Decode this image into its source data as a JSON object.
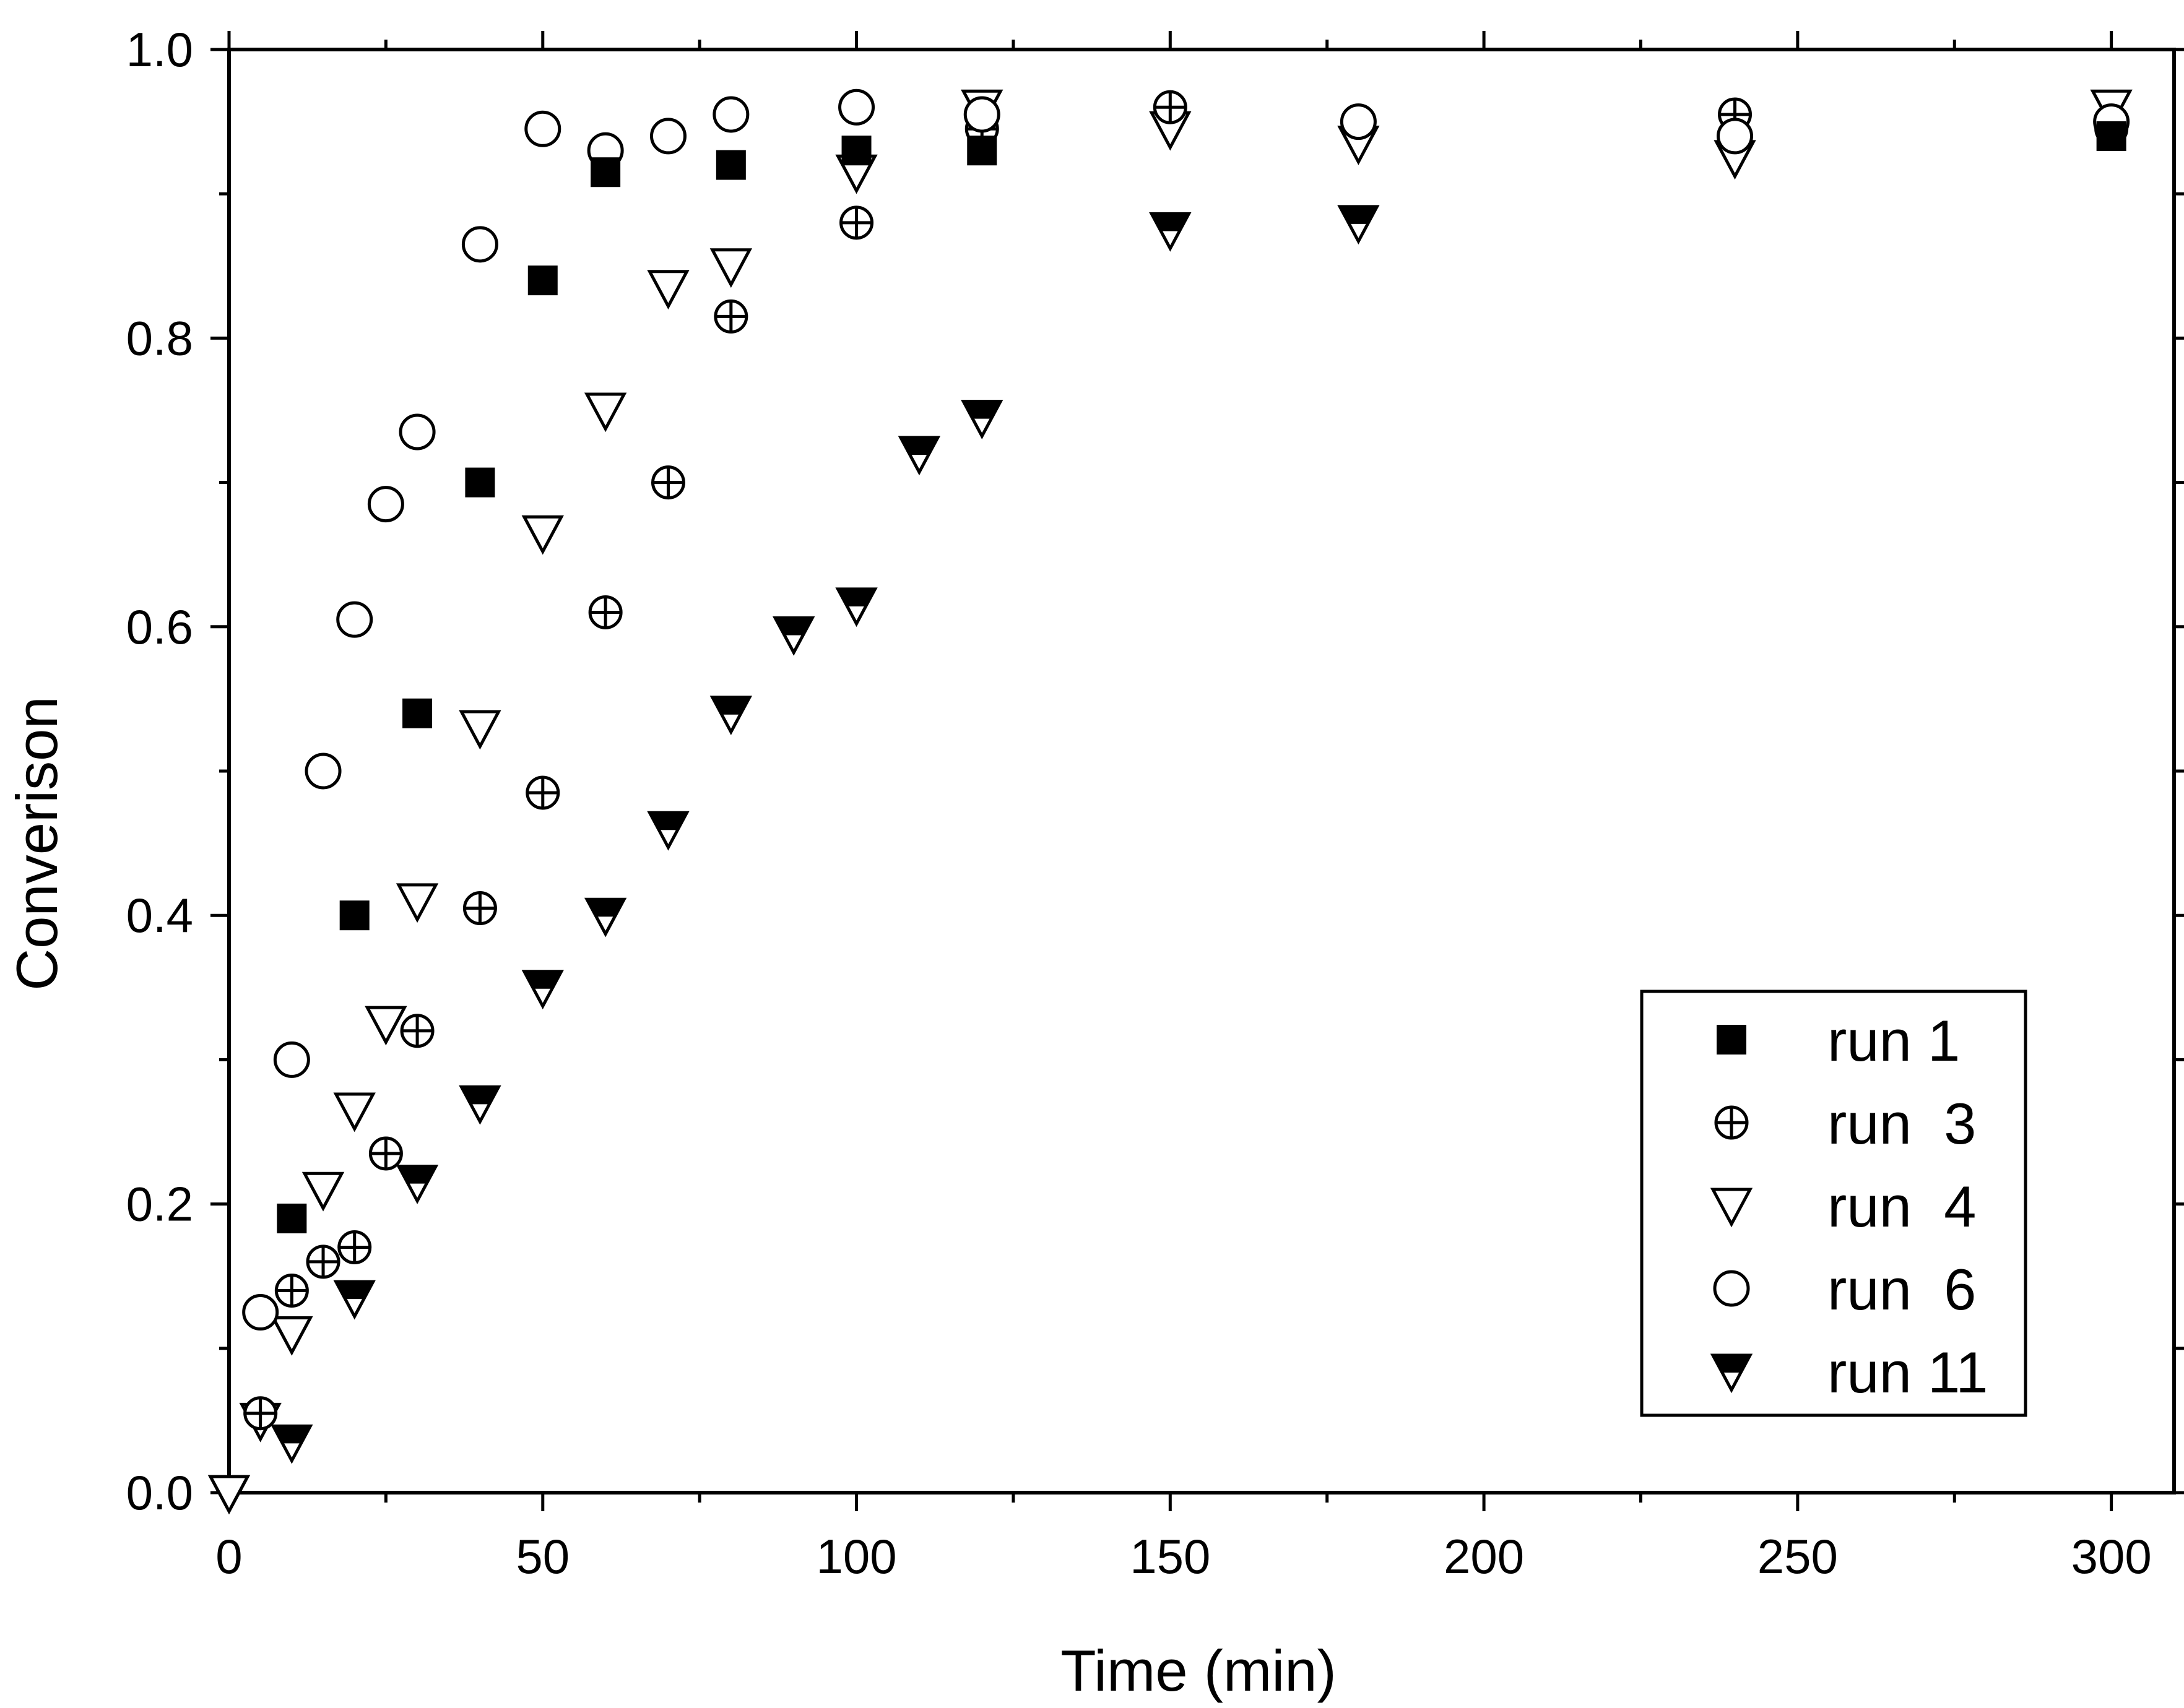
{
  "chart_data": {
    "type": "scatter",
    "xlabel": "Time (min)",
    "ylabel": "Converison",
    "xlim": [
      0,
      310
    ],
    "ylim": [
      0,
      1.0
    ],
    "xticks": [
      0,
      50,
      100,
      150,
      200,
      250,
      300
    ],
    "xtick_labels": [
      "0",
      "50",
      "100",
      "150",
      "200",
      "250",
      "300"
    ],
    "yticks": [
      0.0,
      0.2,
      0.4,
      0.6,
      0.8,
      1.0
    ],
    "ytick_labels": [
      "0.0",
      "0.2",
      "0.4",
      "0.6",
      "0.8",
      "1.0"
    ],
    "grid": false,
    "legend_position": "bottom-right",
    "series": [
      {
        "name": "run 1",
        "marker": "filled-square",
        "x": [
          10,
          20,
          30,
          40,
          50,
          60,
          80,
          100,
          120,
          300
        ],
        "y": [
          0.19,
          0.4,
          0.54,
          0.7,
          0.84,
          0.915,
          0.92,
          0.93,
          0.93,
          0.94
        ]
      },
      {
        "name": "run  3",
        "marker": "circle-plus",
        "x": [
          5,
          10,
          15,
          20,
          25,
          30,
          40,
          50,
          60,
          70,
          80,
          100,
          120,
          150,
          240,
          300
        ],
        "y": [
          0.055,
          0.14,
          0.16,
          0.17,
          0.235,
          0.32,
          0.405,
          0.485,
          0.61,
          0.7,
          0.815,
          0.88,
          0.945,
          0.96,
          0.955,
          0.945
        ]
      },
      {
        "name": "run  4",
        "marker": "open-down-triangle",
        "x": [
          0,
          5,
          10,
          15,
          20,
          25,
          30,
          40,
          50,
          60,
          70,
          80,
          100,
          120,
          150,
          180,
          240,
          300
        ],
        "y": [
          0.0,
          0.05,
          0.11,
          0.21,
          0.265,
          0.325,
          0.41,
          0.53,
          0.665,
          0.75,
          0.835,
          0.85,
          0.915,
          0.96,
          0.945,
          0.935,
          0.925,
          0.96
        ]
      },
      {
        "name": "run  6",
        "marker": "open-circle",
        "x": [
          5,
          10,
          15,
          20,
          25,
          30,
          40,
          50,
          60,
          70,
          80,
          100,
          120,
          180,
          240,
          300
        ],
        "y": [
          0.125,
          0.3,
          0.5,
          0.605,
          0.685,
          0.735,
          0.865,
          0.945,
          0.93,
          0.94,
          0.955,
          0.96,
          0.955,
          0.95,
          0.94,
          0.95
        ]
      },
      {
        "name": "run 11",
        "marker": "half-filled-down-triangle",
        "x": [
          0,
          10,
          20,
          30,
          40,
          50,
          60,
          70,
          80,
          90,
          100,
          110,
          120,
          150,
          180
        ],
        "y": [
          0.0,
          0.035,
          0.135,
          0.215,
          0.27,
          0.35,
          0.4,
          0.46,
          0.54,
          0.595,
          0.615,
          0.72,
          0.745,
          0.875,
          0.88
        ]
      }
    ]
  },
  "colors": {
    "stroke": "#000000",
    "fill": "#000000",
    "background": "#ffffff"
  }
}
